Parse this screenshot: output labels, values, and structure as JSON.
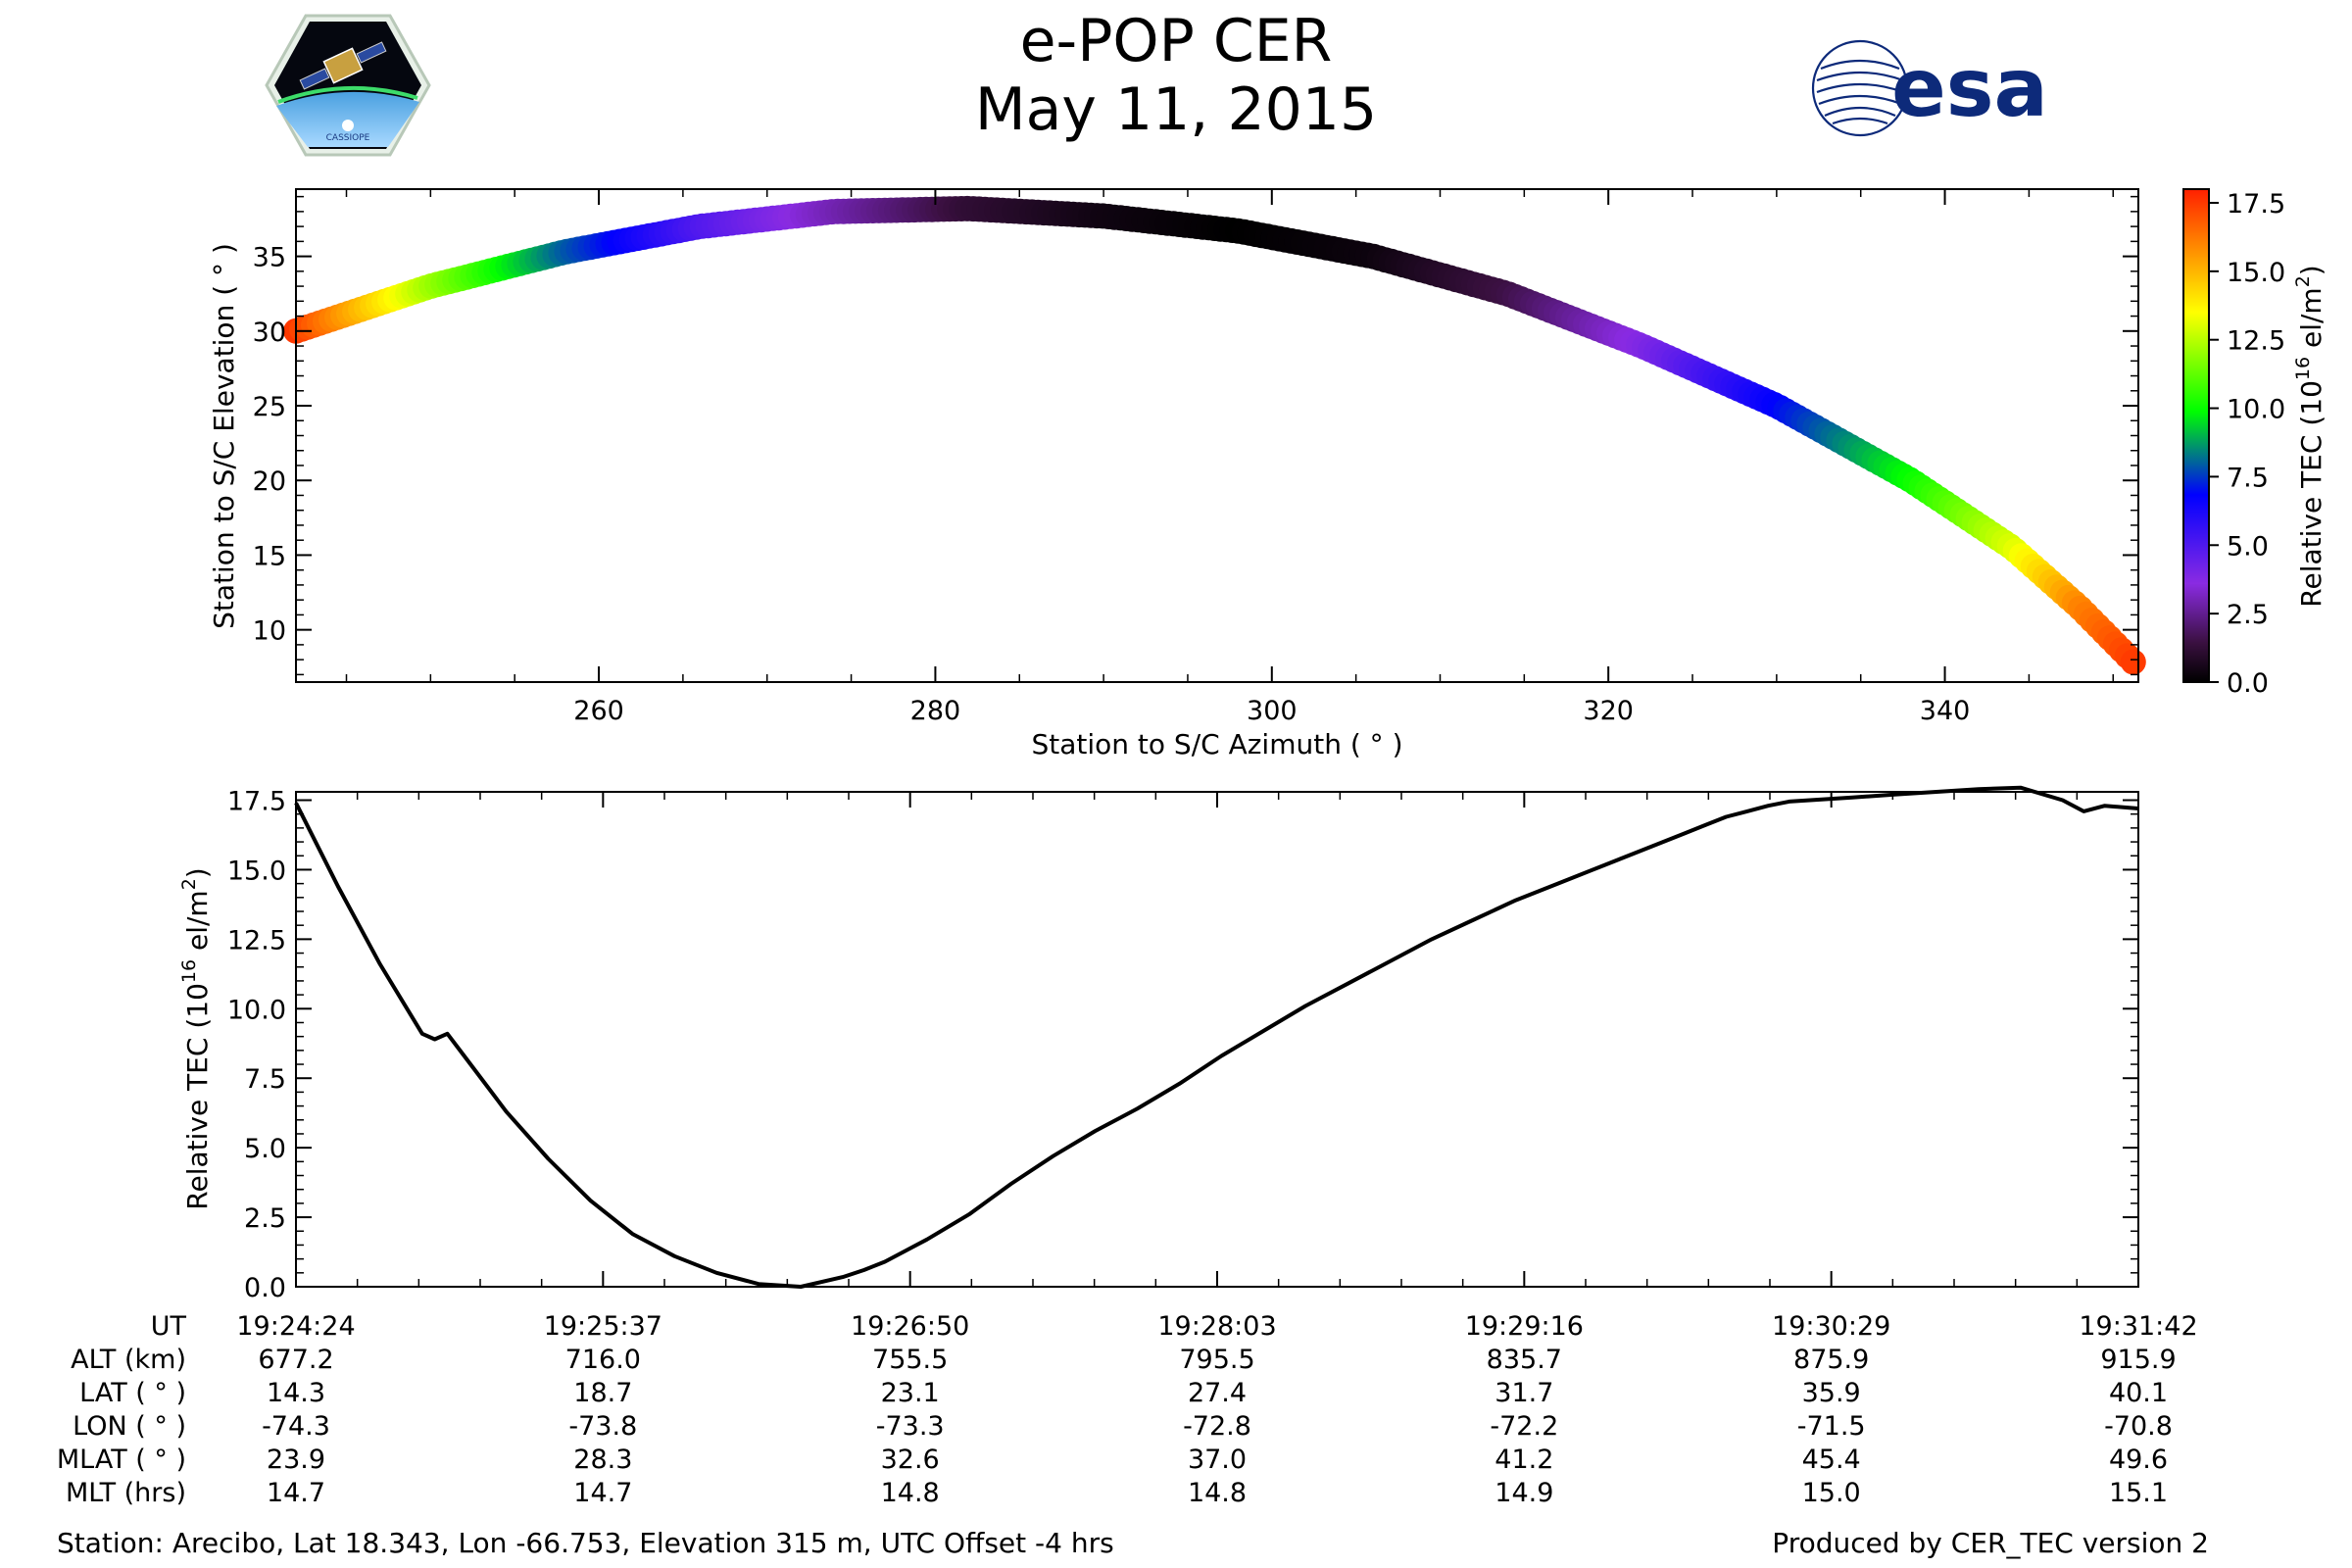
{
  "header": {
    "title": "e-POP CER",
    "date": "May 11, 2015",
    "left_logo": "CASSIOPE",
    "right_logo": "esa"
  },
  "colors": {
    "colormap": [
      "#000000",
      "#3a1040",
      "#8a2be2",
      "#0000ff",
      "#00ff00",
      "#ffff00",
      "#ff8c00",
      "#ff2000"
    ],
    "line": "#000000",
    "esa_blue": "#0d2a7a"
  },
  "chart_data": [
    {
      "type": "scatter",
      "title": "",
      "xlabel": "Station to S/C Azimuth ( ° )",
      "ylabel": "Station to S/C Elevation ( ° )",
      "xlim": [
        242,
        351.5
      ],
      "ylim": [
        6.5,
        39.5
      ],
      "xticks": [
        260,
        280,
        300,
        320,
        340
      ],
      "yticks": [
        10,
        15,
        20,
        25,
        30,
        35
      ],
      "color_variable": "Relative TEC (10^16 el/m^2)",
      "points": [
        {
          "az": 242,
          "el": 30.0,
          "tec": 17.5
        },
        {
          "az": 250,
          "el": 33.0,
          "tec": 12.2
        },
        {
          "az": 258,
          "el": 35.3,
          "tec": 8.0
        },
        {
          "az": 266,
          "el": 37.0,
          "tec": 5.0
        },
        {
          "az": 274,
          "el": 38.0,
          "tec": 3.0
        },
        {
          "az": 282,
          "el": 38.2,
          "tec": 1.2
        },
        {
          "az": 290,
          "el": 37.7,
          "tec": 0.4
        },
        {
          "az": 298,
          "el": 36.7,
          "tec": 0.0
        },
        {
          "az": 306,
          "el": 35.0,
          "tec": 0.3
        },
        {
          "az": 314,
          "el": 32.5,
          "tec": 1.5
        },
        {
          "az": 322,
          "el": 29.0,
          "tec": 3.8
        },
        {
          "az": 330,
          "el": 25.0,
          "tec": 6.8
        },
        {
          "az": 338,
          "el": 20.0,
          "tec": 10.0
        },
        {
          "az": 344,
          "el": 15.5,
          "tec": 13.0
        },
        {
          "az": 348,
          "el": 11.5,
          "tec": 16.0
        },
        {
          "az": 351.5,
          "el": 7.5,
          "tec": 17.6
        }
      ]
    },
    {
      "type": "line",
      "title": "",
      "xlabel": "",
      "ylabel": "Relative TEC (10^16 el/m^2)",
      "x_unit": "seconds since 19:24:24",
      "xlim": [
        0,
        438
      ],
      "ylim": [
        0,
        17.8
      ],
      "yticks": [
        0.0,
        2.5,
        5.0,
        7.5,
        10.0,
        12.5,
        15.0,
        17.5
      ],
      "x": [
        0,
        10,
        20,
        30,
        33,
        36,
        40,
        50,
        60,
        70,
        80,
        90,
        100,
        110,
        120,
        130,
        135,
        140,
        145,
        150,
        160,
        170,
        180,
        190,
        200,
        210,
        220,
        230,
        240,
        250,
        260,
        270,
        280,
        290,
        300,
        310,
        320,
        330,
        335,
        340,
        345,
        350,
        355,
        360,
        370,
        380,
        390,
        400,
        410,
        420,
        425,
        430,
        438
      ],
      "values": [
        17.4,
        14.4,
        11.6,
        9.1,
        8.9,
        9.1,
        8.3,
        6.3,
        4.6,
        3.1,
        1.9,
        1.1,
        0.5,
        0.1,
        0.0,
        0.35,
        0.6,
        0.9,
        1.3,
        1.7,
        2.6,
        3.7,
        4.7,
        5.6,
        6.4,
        7.3,
        8.3,
        9.2,
        10.1,
        10.9,
        11.7,
        12.5,
        13.2,
        13.9,
        14.5,
        15.1,
        15.7,
        16.3,
        16.6,
        16.9,
        17.1,
        17.3,
        17.45,
        17.5,
        17.6,
        17.7,
        17.8,
        17.9,
        17.95,
        17.5,
        17.1,
        17.3,
        17.2
      ]
    }
  ],
  "colorbar": {
    "label": "Relative TEC (10",
    "label_exp": "16",
    "label_tail": " el/m",
    "label_sq": "2",
    "label_end": ")",
    "min": 0,
    "max": 18,
    "ticks": [
      "0.0",
      "2.5",
      "5.0",
      "7.5",
      "10.0",
      "12.5",
      "15.0",
      "17.5"
    ]
  },
  "bottom_ylabel": {
    "label": "Relative TEC (10",
    "label_exp": "16",
    "label_tail": " el/m",
    "label_sq": "2",
    "label_end": ")"
  },
  "table": {
    "row_labels": [
      "UT",
      "ALT (km)",
      "LAT ( ° )",
      "LON ( ° )",
      "MLAT ( ° )",
      "MLT (hrs)"
    ],
    "columns": [
      [
        "19:24:24",
        "677.2",
        "14.3",
        "-74.3",
        "23.9",
        "14.7"
      ],
      [
        "19:25:37",
        "716.0",
        "18.7",
        "-73.8",
        "28.3",
        "14.7"
      ],
      [
        "19:26:50",
        "755.5",
        "23.1",
        "-73.3",
        "32.6",
        "14.8"
      ],
      [
        "19:28:03",
        "795.5",
        "27.4",
        "-72.8",
        "37.0",
        "14.8"
      ],
      [
        "19:29:16",
        "835.7",
        "31.7",
        "-72.2",
        "41.2",
        "14.9"
      ],
      [
        "19:30:29",
        "875.9",
        "35.9",
        "-71.5",
        "45.4",
        "15.0"
      ],
      [
        "19:31:42",
        "915.9",
        "40.1",
        "-70.8",
        "49.6",
        "15.1"
      ]
    ]
  },
  "footer": {
    "station": "Station: Arecibo, Lat 18.343, Lon -66.753, Elevation 315 m, UTC Offset -4 hrs",
    "produced": "Produced by CER_TEC version 2"
  }
}
